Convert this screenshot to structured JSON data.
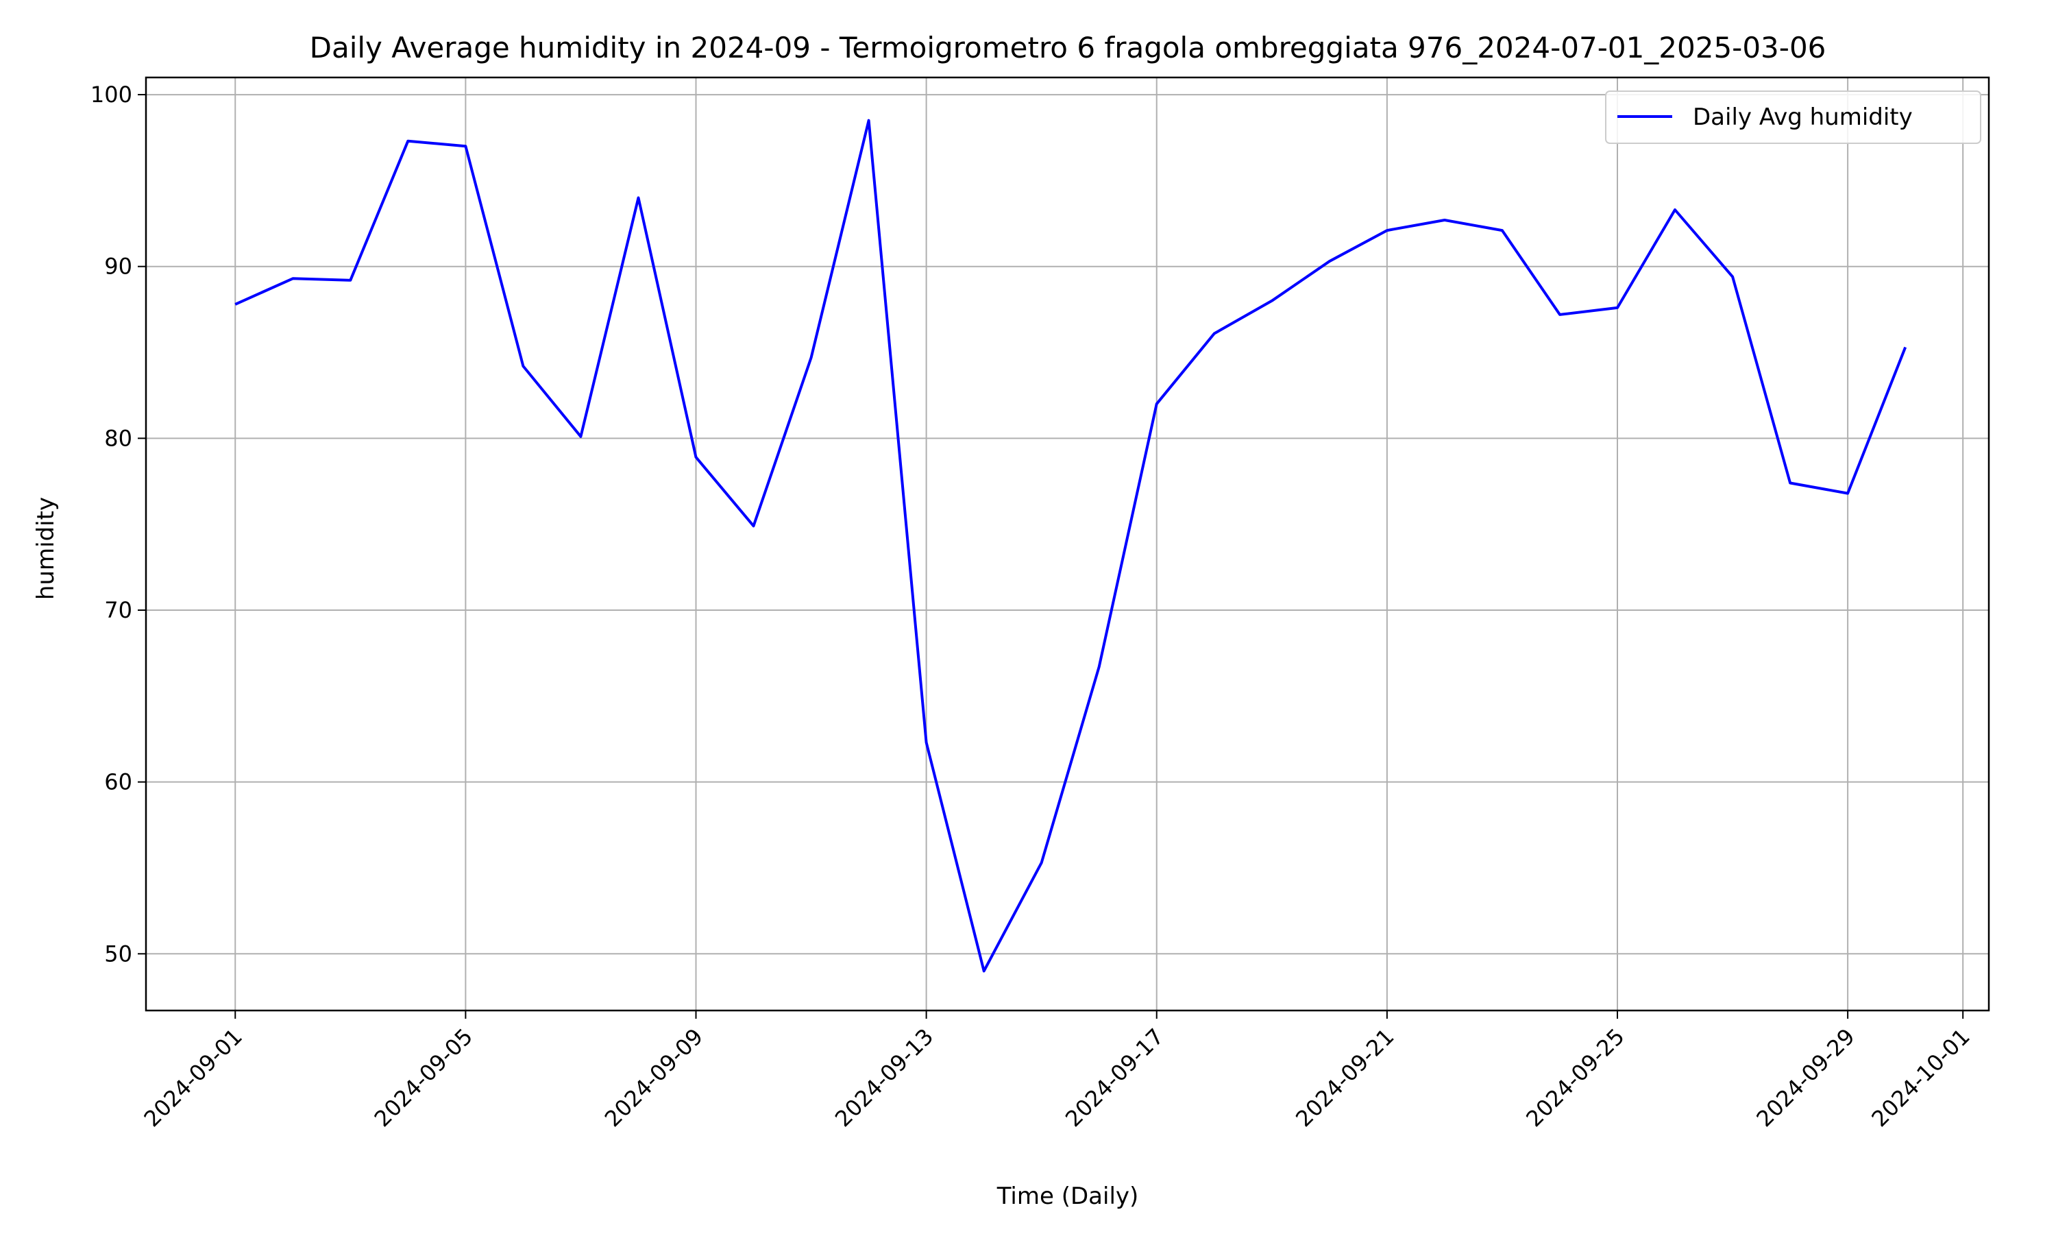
{
  "chart_data": {
    "type": "line",
    "title": "Daily Average humidity in 2024-09 - Termoigrometro 6 fragola ombreggiata 976_2024-07-01_2025-03-06",
    "xlabel": "Time (Daily)",
    "ylabel": "humidity",
    "x_ticks": [
      "2024-09-01",
      "2024-09-05",
      "2024-09-09",
      "2024-09-13",
      "2024-09-17",
      "2024-09-21",
      "2024-09-25",
      "2024-09-29",
      "2024-10-01"
    ],
    "y_ticks": [
      50,
      60,
      70,
      80,
      90,
      100
    ],
    "xlim": [
      "2024-08-30",
      "2024-10-01"
    ],
    "ylim": [
      46.7,
      101
    ],
    "grid": true,
    "legend": {
      "position": "upper right"
    },
    "series": [
      {
        "name": "Daily Avg humidity",
        "color": "#0000ff",
        "x": [
          "2024-09-01",
          "2024-09-02",
          "2024-09-03",
          "2024-09-04",
          "2024-09-05",
          "2024-09-06",
          "2024-09-07",
          "2024-09-08",
          "2024-09-09",
          "2024-09-10",
          "2024-09-11",
          "2024-09-12",
          "2024-09-13",
          "2024-09-14",
          "2024-09-15",
          "2024-09-16",
          "2024-09-17",
          "2024-09-18",
          "2024-09-19",
          "2024-09-20",
          "2024-09-21",
          "2024-09-22",
          "2024-09-23",
          "2024-09-24",
          "2024-09-25",
          "2024-09-26",
          "2024-09-27",
          "2024-09-28",
          "2024-09-29",
          "2024-09-30"
        ],
        "values": [
          87.8,
          89.3,
          89.2,
          97.3,
          97.0,
          84.2,
          80.1,
          94.0,
          78.9,
          74.9,
          84.7,
          98.5,
          62.3,
          49.0,
          55.3,
          66.7,
          82.0,
          86.1,
          88.0,
          90.3,
          92.1,
          92.7,
          92.1,
          87.2,
          87.6,
          93.3,
          89.4,
          77.4,
          76.8,
          85.3
        ]
      }
    ]
  }
}
